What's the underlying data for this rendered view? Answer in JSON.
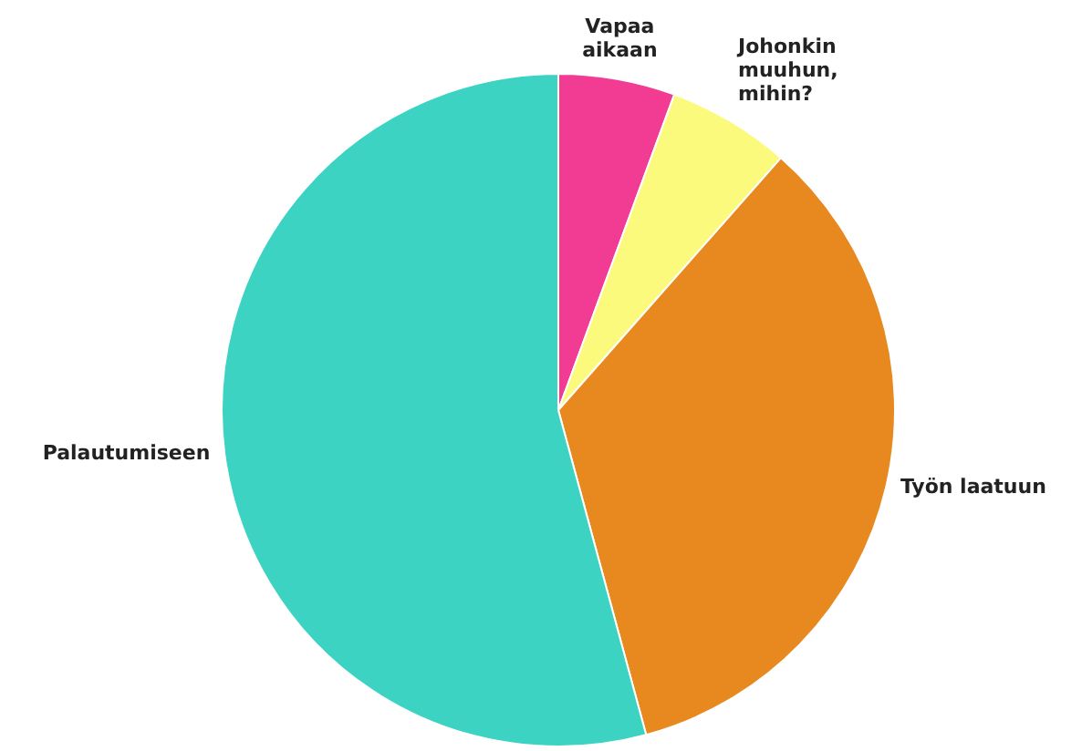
{
  "chart_data": {
    "type": "pie",
    "categories": [
      "Vapaa aikaan",
      "Johonkin muuhun, mihin?",
      "Työn laatuun",
      "Palautumiseen"
    ],
    "values": [
      5.6,
      5.9,
      34.3,
      54.2
    ],
    "colors": [
      "#f23c93",
      "#fbfa7c",
      "#e8891f",
      "#3dd3c2"
    ],
    "legend": false
  }
}
